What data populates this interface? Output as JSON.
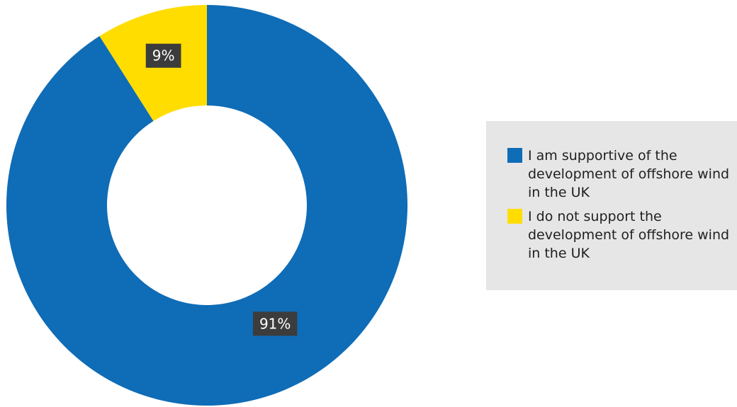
{
  "chart_data": {
    "type": "pie",
    "variant": "donut",
    "title": "",
    "slices": [
      {
        "label": "I do not support the development of offshore wind in the UK",
        "value": 9,
        "display": "9%",
        "color": "#ffdd00"
      },
      {
        "label": "I am supportive of the development of offshore wind in the UK",
        "value": 91,
        "display": "91%",
        "color": "#0f6cb6"
      }
    ],
    "legend_position": "right",
    "label_box_color": "#3c3c3c"
  },
  "legend": {
    "items": [
      {
        "label": "I am supportive of the development of offshore wind in the UK",
        "color": "#0f6cb6"
      },
      {
        "label": "I do not support the development of offshore wind in the UK",
        "color": "#ffdd00"
      }
    ]
  }
}
